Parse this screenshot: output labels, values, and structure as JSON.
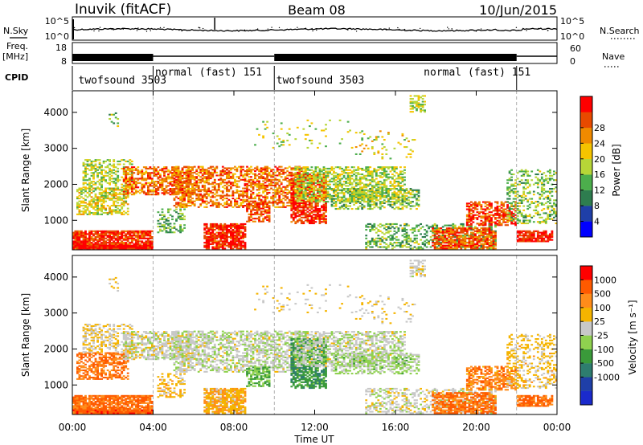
{
  "header": {
    "station": "Inuvik (fitACF)",
    "beam": "Beam 08",
    "date": "10/Jun/2015"
  },
  "left_labels": {
    "nsky": "N.Sky",
    "freq_top": "Freq.",
    "freq_unit": "[MHz]",
    "cpid": "CPID"
  },
  "right_labels": {
    "nsearch": "N.Search",
    "nave": "Nave"
  },
  "colors": {
    "power": [
      "#0000ff",
      "#1f3fa8",
      "#2e7d4f",
      "#4cae4c",
      "#b7d637",
      "#f5c400",
      "#f08a00",
      "#e84a00",
      "#ff0000"
    ],
    "velocity": [
      "#ff0000",
      "#ff5a00",
      "#ff8c1a",
      "#f5b400",
      "#c8c8c8",
      "#8fd14f",
      "#3a9a3a",
      "#2e7d6f",
      "#1f3fa8",
      "#1a2acc"
    ],
    "grid": "#9a9a9a"
  },
  "chart_data": [
    {
      "type": "line",
      "panel": "noise",
      "ylabel_left": "N.Sky",
      "ylabel_right": "N.Search",
      "yticks_left": [
        "10^5",
        "10^0"
      ],
      "yticks_right": [
        "10^5",
        "10^0"
      ],
      "xlim": [
        0,
        24
      ]
    },
    {
      "type": "line",
      "panel": "frequency",
      "ylabel_left": "[MHz]",
      "ylabel_right": "Nave",
      "yticks_left": [
        "18",
        "8"
      ],
      "yticks_right": [
        "60",
        "0"
      ],
      "xlim": [
        0,
        24
      ]
    },
    {
      "type": "table",
      "panel": "cpid",
      "segments": [
        {
          "start": 0,
          "end": 4,
          "label": "twofsound 3503"
        },
        {
          "start": 4,
          "end": 10,
          "label": "normal (fast) 151"
        },
        {
          "start": 10,
          "end": 22,
          "label": "twofsound 3503"
        },
        {
          "start": 16.5,
          "end": 22,
          "label": "normal (fast) 151"
        }
      ]
    },
    {
      "type": "heatmap",
      "panel": "power",
      "ylabel": "Slant Range [km]",
      "colorbar_label": "Power [dB]",
      "colorbar_ticks": [
        4,
        8,
        12,
        16,
        20,
        24,
        28
      ],
      "yticks": [
        1000,
        2000,
        3000,
        4000
      ],
      "ylim": [
        180,
        4600
      ],
      "xlim": [
        0,
        24
      ]
    },
    {
      "type": "heatmap",
      "panel": "velocity",
      "ylabel": "Slant Range [km]",
      "colorbar_label": "Velocity [m s⁻¹]",
      "colorbar_ticks": [
        "1000",
        "500",
        "100",
        "25",
        "-25",
        "-100",
        "-500",
        "-1000"
      ],
      "yticks": [
        1000,
        2000,
        3000,
        4000
      ],
      "ylim": [
        180,
        4600
      ],
      "xlim": [
        0,
        24
      ],
      "xticks": [
        "00:00",
        "04:00",
        "08:00",
        "12:00",
        "16:00",
        "20:00",
        "00:00"
      ],
      "xlabel": "Time UT"
    }
  ]
}
